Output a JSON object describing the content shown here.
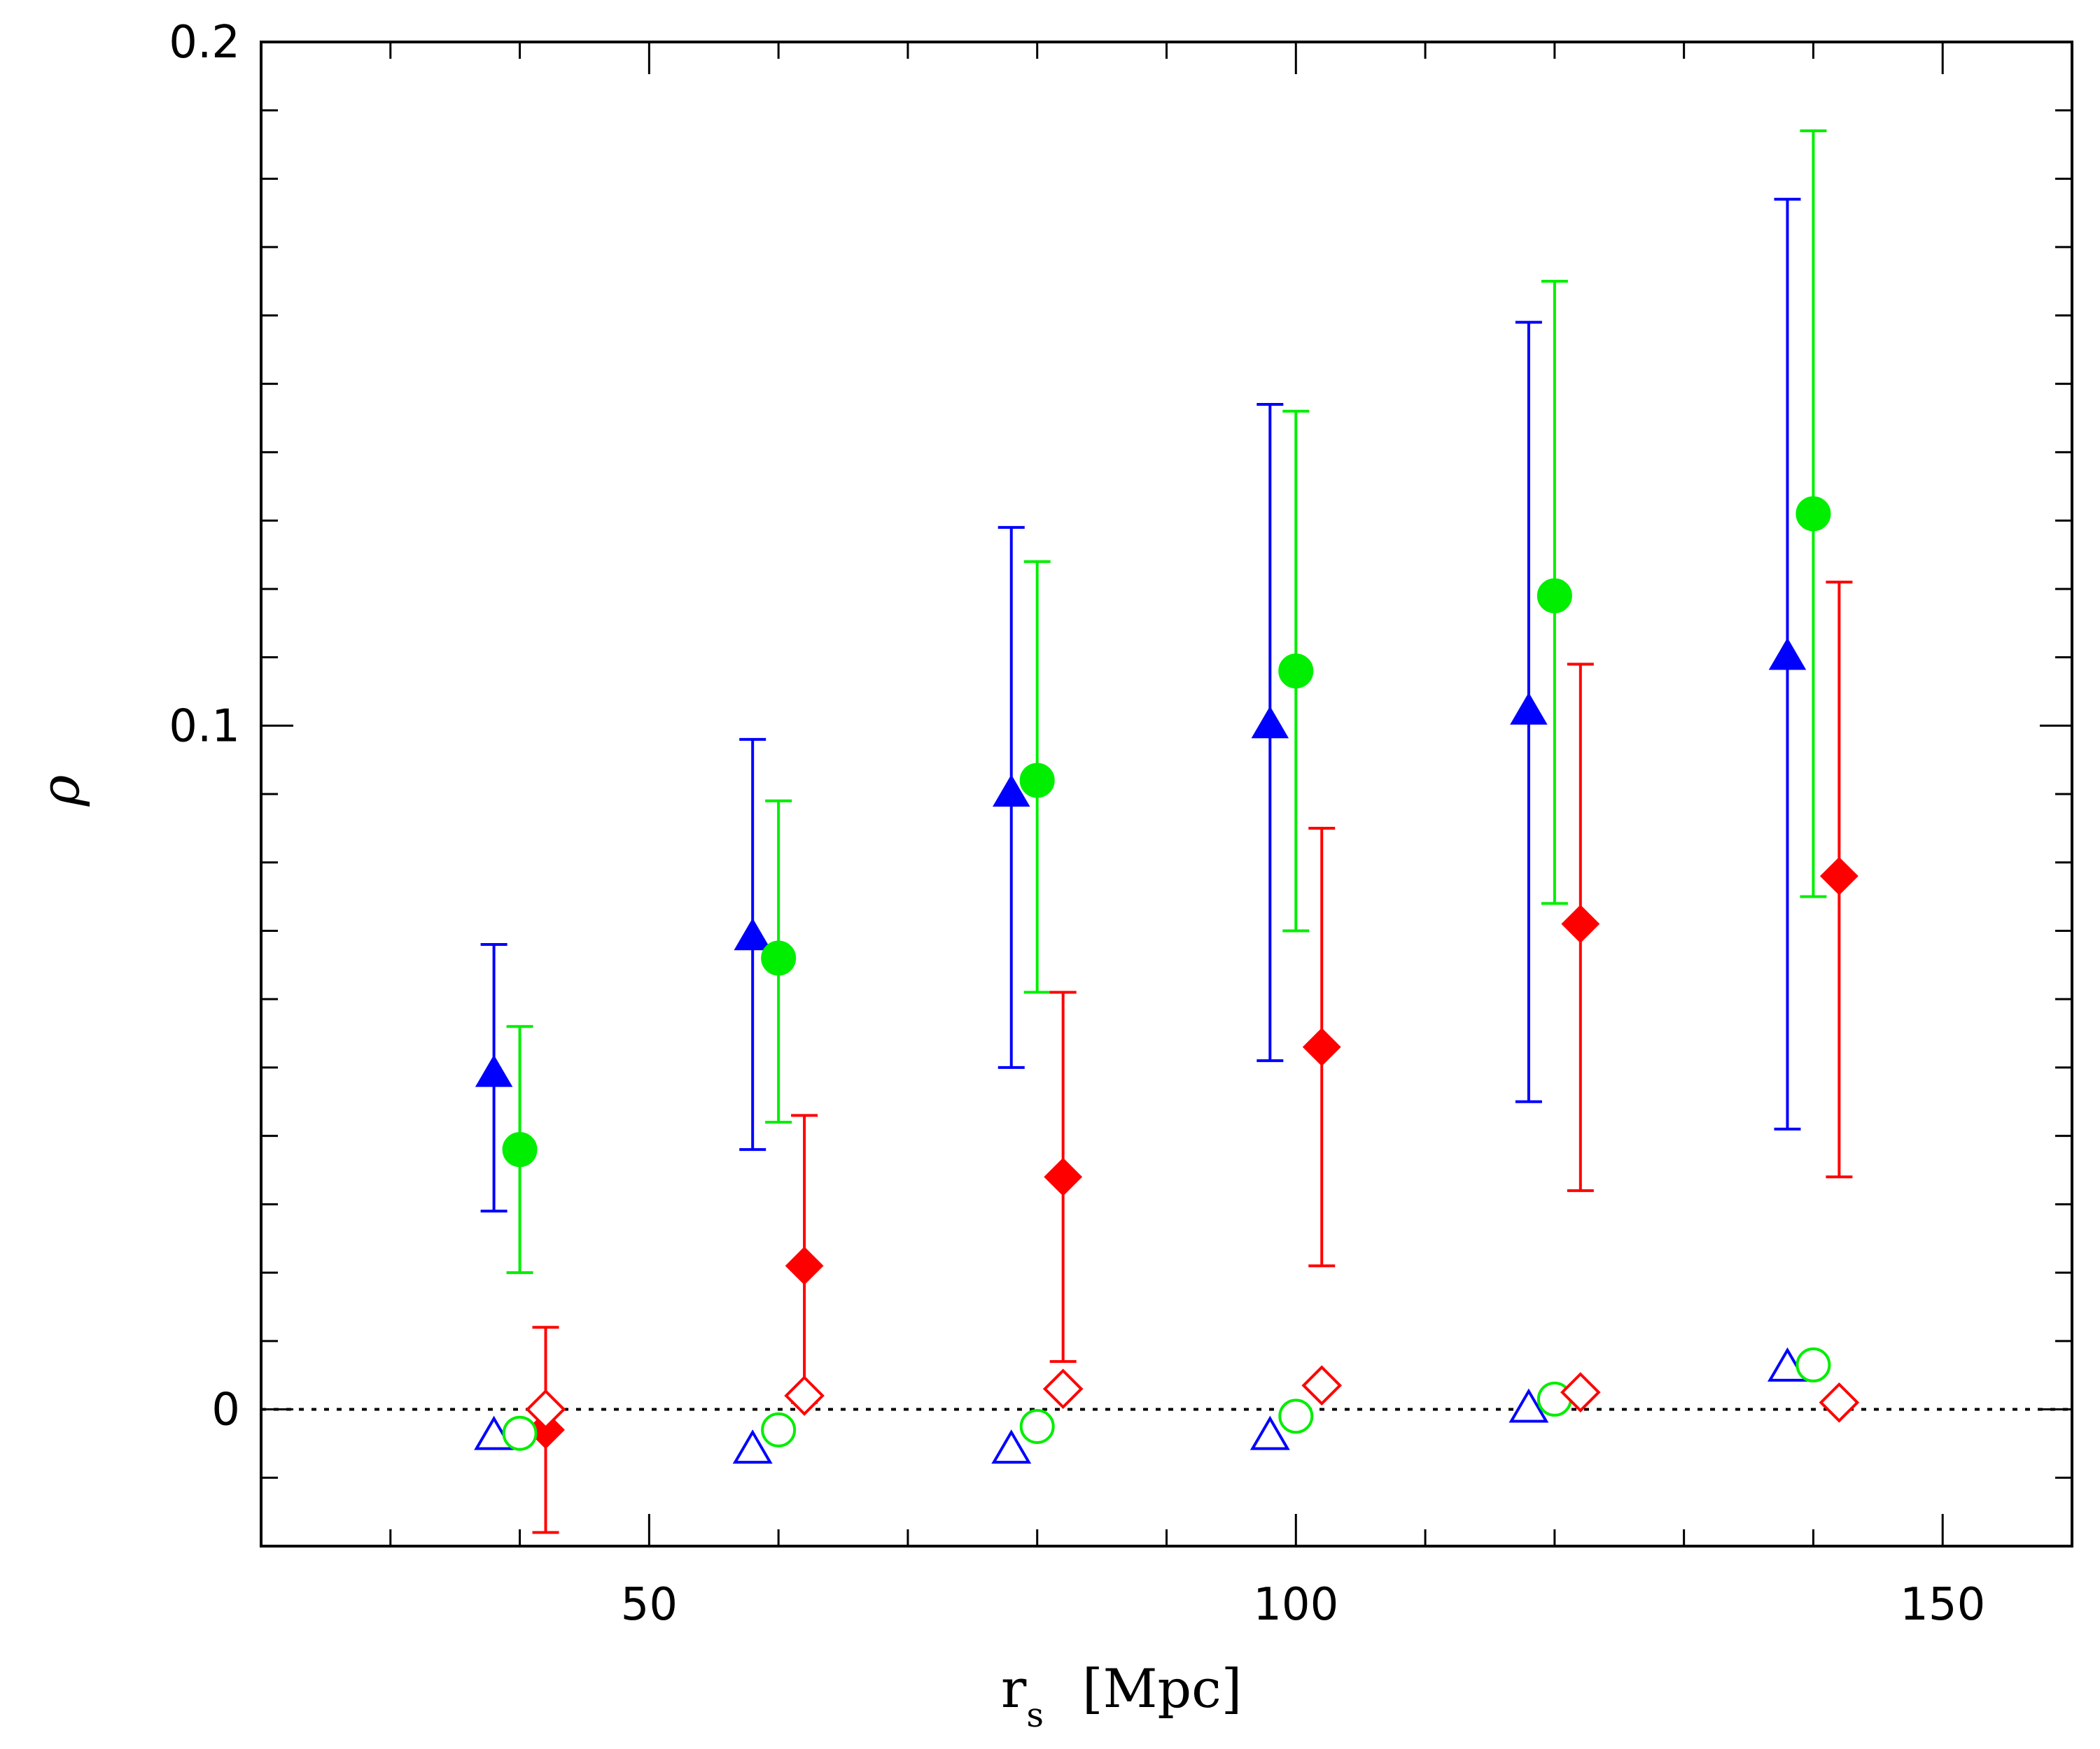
{
  "chart_data": {
    "type": "scatter",
    "title": "",
    "xlabel": "r",
    "xlabel_subscript": "s",
    "xlabel_unit": "[Mpc]",
    "ylabel": "ρ",
    "xlim": [
      20,
      160
    ],
    "ylim": [
      -0.02,
      0.2
    ],
    "xticks": [
      50,
      100,
      150
    ],
    "xtick_labels": [
      "50",
      "100",
      "150"
    ],
    "xminor_step": 10,
    "yticks": [
      0,
      0.1,
      0.2
    ],
    "ytick_labels": [
      "0",
      "0.1",
      "0.2"
    ],
    "yminor_step": 0.01,
    "zero_line": {
      "y": 0,
      "style": "dotted"
    },
    "series": [
      {
        "name": "blue-filled-triangle",
        "marker": "triangle",
        "filled": true,
        "color": "#0000ff",
        "x": [
          38,
          58,
          78,
          98,
          118,
          138
        ],
        "y": [
          0.049,
          0.069,
          0.09,
          0.1,
          0.102,
          0.11
        ],
        "err_lo": [
          0.029,
          0.038,
          0.05,
          0.051,
          0.045,
          0.041
        ],
        "err_hi": [
          0.068,
          0.098,
          0.129,
          0.147,
          0.159,
          0.177
        ]
      },
      {
        "name": "green-filled-circle",
        "marker": "circle",
        "filled": true,
        "color": "#00ee00",
        "x": [
          40,
          60,
          80,
          100,
          120,
          140
        ],
        "y": [
          0.038,
          0.066,
          0.092,
          0.108,
          0.119,
          0.131
        ],
        "err_lo": [
          0.02,
          0.042,
          0.061,
          0.07,
          0.074,
          0.075
        ],
        "err_hi": [
          0.056,
          0.089,
          0.124,
          0.146,
          0.165,
          0.187
        ]
      },
      {
        "name": "red-filled-diamond",
        "marker": "diamond",
        "filled": true,
        "color": "#ff0000",
        "x": [
          42,
          62,
          82,
          102,
          122,
          142
        ],
        "y": [
          -0.003,
          0.021,
          0.034,
          0.053,
          0.071,
          0.078
        ],
        "err_lo": [
          -0.018,
          0.001,
          0.007,
          0.021,
          0.032,
          0.034
        ],
        "err_hi": [
          0.012,
          0.043,
          0.061,
          0.085,
          0.109,
          0.121
        ]
      },
      {
        "name": "blue-open-triangle",
        "marker": "triangle",
        "filled": false,
        "color": "#0000ff",
        "x": [
          38,
          58,
          78,
          98,
          118,
          138
        ],
        "y": [
          -0.004,
          -0.006,
          -0.006,
          -0.004,
          0.0,
          0.006
        ]
      },
      {
        "name": "green-open-circle",
        "marker": "circle",
        "filled": false,
        "color": "#00ee00",
        "x": [
          40,
          60,
          80,
          100,
          120,
          140
        ],
        "y": [
          -0.0035,
          -0.003,
          -0.0025,
          -0.001,
          0.0015,
          0.0065
        ]
      },
      {
        "name": "red-open-diamond",
        "marker": "diamond",
        "filled": false,
        "color": "#ff0000",
        "x": [
          42,
          62,
          82,
          102,
          122,
          142
        ],
        "y": [
          0.0,
          0.002,
          0.003,
          0.0035,
          0.0025,
          0.001
        ]
      }
    ]
  }
}
